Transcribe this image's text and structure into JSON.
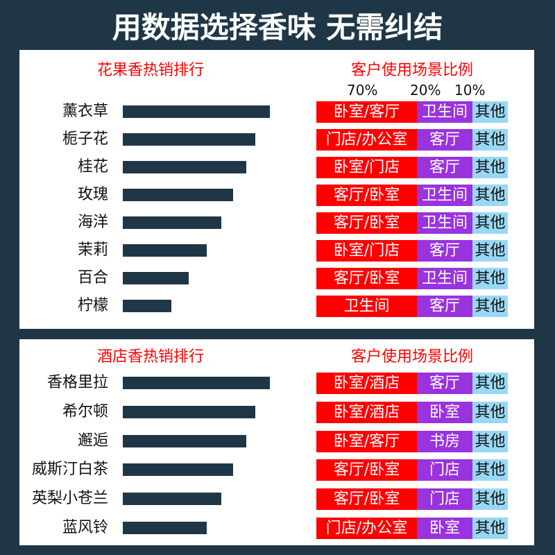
{
  "title": "用数据选择香味 无需纠结",
  "colors": {
    "background": "#1f3646",
    "bar": "#1f3646",
    "primary": "#ff0000",
    "secondary": "#9933dd",
    "other": "#99d8f5",
    "heading": "#ff0000"
  },
  "percent_labels": [
    "70%",
    "20%",
    "10%"
  ],
  "chart_data": [
    {
      "type": "bar",
      "orientation": "horizontal",
      "title": "花果香热销排行",
      "categories": [
        "薰衣草",
        "栀子花",
        "桂花",
        "玫瑰",
        "海洋",
        "茉莉",
        "百合",
        "柠檬"
      ],
      "values": [
        100,
        90,
        84,
        75,
        67,
        57,
        45,
        33
      ],
      "usage_title": "客户使用场景比例",
      "usage": [
        [
          "卧室/客厅",
          "卫生间",
          "其他"
        ],
        [
          "门店/办公室",
          "客厅",
          "其他"
        ],
        [
          "卧室/门店",
          "客厅",
          "其他"
        ],
        [
          "客厅/卧室",
          "卫生间",
          "其他"
        ],
        [
          "客厅/卧室",
          "卫生间",
          "其他"
        ],
        [
          "卧室/门店",
          "客厅",
          "其他"
        ],
        [
          "客厅/卧室",
          "卫生间",
          "其他"
        ],
        [
          "卫生间",
          "客厅",
          "其他"
        ]
      ]
    },
    {
      "type": "bar",
      "orientation": "horizontal",
      "title": "酒店香热销排行",
      "categories": [
        "香格里拉",
        "希尔顿",
        "邂逅",
        "威斯汀白茶",
        "英梨小苍兰",
        "蓝风铃"
      ],
      "values": [
        100,
        90,
        84,
        75,
        67,
        57
      ],
      "usage_title": "客户使用场景比例",
      "usage": [
        [
          "卧室/酒店",
          "客厅",
          "其他"
        ],
        [
          "卧室/酒店",
          "卧室",
          "其他"
        ],
        [
          "卧室/客厅",
          "书房",
          "其他"
        ],
        [
          "客厅/卧室",
          "门店",
          "其他"
        ],
        [
          "客厅/卧室",
          "门店",
          "其他"
        ],
        [
          "门店/办公室",
          "卧室",
          "其他"
        ]
      ]
    }
  ]
}
